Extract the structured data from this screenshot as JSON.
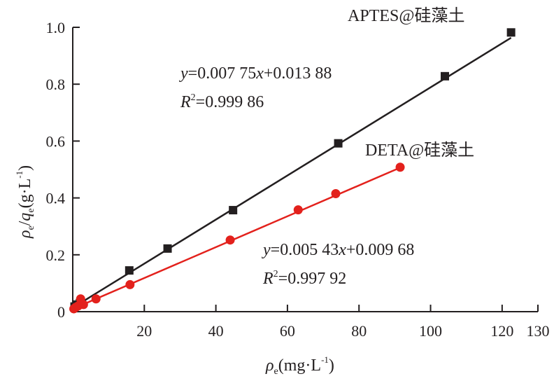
{
  "chart_data": {
    "type": "scatter",
    "xlabel": {
      "symbol": "ρ",
      "sub": "e",
      "unit_pre": "(mg·L",
      "sup": "-1",
      "unit_post": ")"
    },
    "ylabel": {
      "symbol1": "ρ",
      "sub1": "e",
      "slash": "/",
      "symbol2": "q",
      "sub2": "e",
      "unit_pre": "(g·L",
      "sup": "-1",
      "unit_post": ")"
    },
    "xlim": [
      0,
      130
    ],
    "ylim": [
      0,
      1.0
    ],
    "x_ticks": [
      20,
      40,
      60,
      80,
      100,
      120,
      130
    ],
    "y_ticks": [
      0,
      0.2,
      0.4,
      0.6,
      0.8,
      1.0
    ],
    "y_tick_labels": [
      "0",
      "0.2",
      "0.4",
      "0.6",
      "0.8",
      "1.0"
    ],
    "x_tick_labels": [
      "20",
      "40",
      "60",
      "80",
      "100",
      "120",
      "130"
    ],
    "series": [
      {
        "name": "APTES@硅藻土",
        "color": "#231f20",
        "marker": "square",
        "x": [
          0.5,
          1.2,
          2.0,
          15.8,
          26.5,
          44.8,
          74.2,
          104.0,
          122.5
        ],
        "y": [
          0.018,
          0.025,
          0.03,
          0.145,
          0.222,
          0.357,
          0.592,
          0.828,
          0.982
        ],
        "fit": {
          "slope": 0.00775,
          "intercept": 0.01388,
          "x_range": [
            0.3,
            122.5
          ]
        },
        "equation": {
          "y_var": "y",
          "eq_pre": "=0.007 75",
          "x_var": "x",
          "eq_post": "+0.013 88"
        },
        "r2": {
          "var": "R",
          "sup": "2",
          "value": "=0.999 86"
        }
      },
      {
        "name": "DETA@硅藻土",
        "color": "#e3211c",
        "marker": "circle",
        "x": [
          0.3,
          0.8,
          1.5,
          2.2,
          3.0,
          6.5,
          16.0,
          44.0,
          63.0,
          73.5,
          91.5
        ],
        "y": [
          0.01,
          0.015,
          0.02,
          0.045,
          0.025,
          0.045,
          0.095,
          0.252,
          0.358,
          0.415,
          0.508
        ],
        "fit": {
          "slope": 0.00543,
          "intercept": 0.00968,
          "x_range": [
            0.3,
            91.5
          ]
        },
        "equation": {
          "y_var": "y",
          "eq_pre": "=0.005 43",
          "x_var": "x",
          "eq_post": "+0.009 68"
        },
        "r2": {
          "var": "R",
          "sup": "2",
          "value": "=0.997 92"
        }
      }
    ]
  }
}
